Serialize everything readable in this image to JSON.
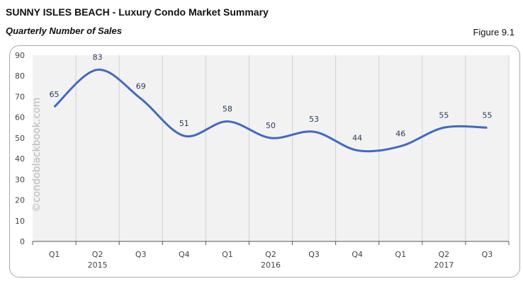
{
  "header": {
    "title": "SUNNY ISLES BEACH - Luxury Condo Market Summary",
    "subtitle": "Quarterly Number of Sales",
    "figure": "Figure 9.1"
  },
  "watermark": "©condoblackbook.com",
  "chart_data": {
    "type": "line",
    "title": "",
    "categories": [
      "Q1",
      "Q2",
      "Q3",
      "Q4",
      "Q1",
      "Q2",
      "Q3",
      "Q4",
      "Q1",
      "Q2",
      "Q3"
    ],
    "years": [
      {
        "label": "2015",
        "category_index": 1
      },
      {
        "label": "2016",
        "category_index": 5
      },
      {
        "label": "2017",
        "category_index": 9
      }
    ],
    "values": [
      65,
      83,
      69,
      51,
      58,
      50,
      53,
      44,
      46,
      55,
      55
    ],
    "ylim": [
      0,
      90
    ],
    "yticks": [
      0,
      10,
      20,
      30,
      40,
      50,
      60,
      70,
      80,
      90
    ],
    "grid": "vertical",
    "smooth": true,
    "colors": {
      "line": "#4169c4",
      "plot_bg": "#f2f2f2",
      "label": "#2a3a5a"
    }
  }
}
